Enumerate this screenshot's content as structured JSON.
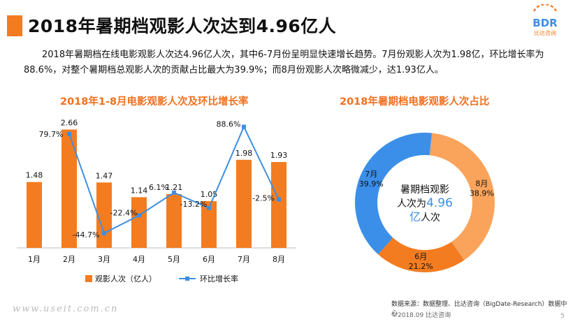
{
  "header": {
    "title": "2018年暑期档观影人次达到4.96亿人",
    "logo_text": "BDR",
    "logo_sub": "比达咨询"
  },
  "intro": "2018年暑期档在线电影观影人次达4.96亿人次，其中6-7月份呈明显快速增长趋势。7月份观影人次为1.98亿，环比增长率为88.6%，对整个暑期档总观影人次的贡献占比最大为39.9%；而8月份观影人次略微减少，达1.93亿人。",
  "colors": {
    "accent": "#f47c20",
    "bar": "#f47c20",
    "line": "#3f8fdf",
    "orange_light": "#f9a35b",
    "blue": "#3b8fe8"
  },
  "chart_data": [
    {
      "type": "bar",
      "title": "2018年1-8月电影观影人次及环比增长率",
      "categories": [
        "1月",
        "2月",
        "3月",
        "4月",
        "5月",
        "6月",
        "7月",
        "8月"
      ],
      "series": [
        {
          "name": "观影人次（亿人）",
          "type": "bar",
          "values": [
            1.48,
            2.66,
            1.47,
            1.14,
            1.21,
            1.05,
            1.98,
            1.93
          ],
          "labels": [
            "1.48",
            "2.66",
            "1.47",
            "1.14",
            "1.21",
            "1.05",
            "1.98",
            "1.93"
          ]
        },
        {
          "name": "环比增长率",
          "type": "line",
          "values": [
            null,
            79.7,
            -44.7,
            -22.4,
            6.1,
            -13.2,
            88.6,
            -2.5
          ],
          "labels": [
            "",
            "79.7%",
            "-44.7%",
            "-22.4%",
            "6.1%",
            "-13.2%",
            "88.6%",
            "-2.5%"
          ]
        }
      ],
      "bar_ylim": [
        0,
        3
      ],
      "line_ylim": [
        -50,
        90
      ],
      "legend_position": "bottom"
    },
    {
      "type": "pie",
      "title": "2018年暑期档电影观影人次占比",
      "slices": [
        {
          "label": "8月",
          "value": 38.9,
          "pct": "38.9%",
          "color": "#f9a35b"
        },
        {
          "label": "6月",
          "value": 21.2,
          "pct": "21.2%",
          "color": "#f47c20"
        },
        {
          "label": "7月",
          "value": 39.9,
          "pct": "39.9%",
          "color": "#3b8fe8"
        }
      ],
      "center_line1": "暑期档观影",
      "center_line2_pre": "人次为",
      "center_value": "4.96",
      "center_unit": "亿",
      "center_tail": "人次"
    }
  ],
  "footer": {
    "source": "数据来源：数据整理、比达咨询（BigDate-Research）数据中心",
    "copyright": "©2018.09 比达咨询",
    "page": "5",
    "watermark": "www.useit.com.cn"
  }
}
